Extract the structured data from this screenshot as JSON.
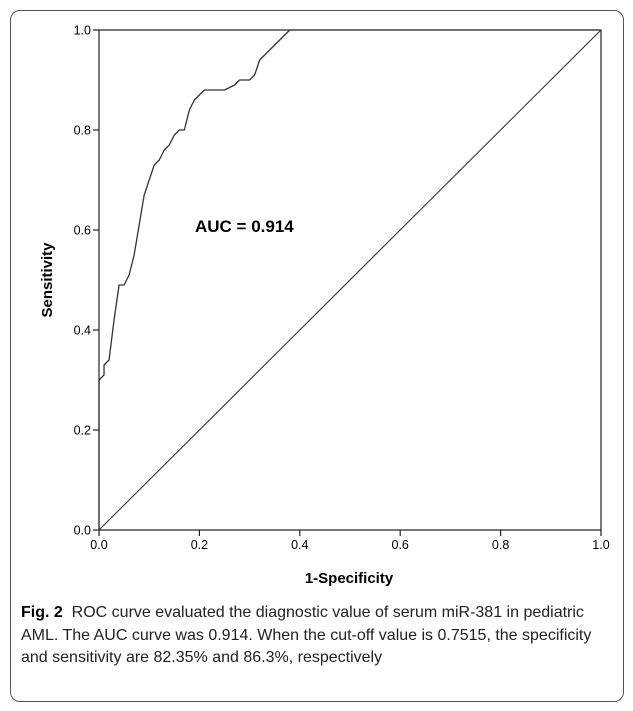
{
  "chart_data": {
    "type": "line",
    "title": "",
    "xlabel": "1-Specificity",
    "ylabel": "Sensitivity",
    "xlim": [
      0.0,
      1.0
    ],
    "ylim": [
      0.0,
      1.0
    ],
    "xticks": [
      "0.0",
      "0.2",
      "0.4",
      "0.6",
      "0.8",
      "1.0"
    ],
    "yticks": [
      "0.0",
      "0.2",
      "0.4",
      "0.6",
      "0.8",
      "1.0"
    ],
    "grid": false,
    "annotation": "AUC = 0.914",
    "series": [
      {
        "points": [
          [
            0.0,
            0.0
          ],
          [
            0.0,
            0.16
          ],
          [
            0.0,
            0.3
          ],
          [
            0.01,
            0.31
          ],
          [
            0.01,
            0.33
          ],
          [
            0.02,
            0.34
          ],
          [
            0.03,
            0.42
          ],
          [
            0.04,
            0.49
          ],
          [
            0.05,
            0.49
          ],
          [
            0.06,
            0.51
          ],
          [
            0.07,
            0.55
          ],
          [
            0.08,
            0.61
          ],
          [
            0.09,
            0.67
          ],
          [
            0.1,
            0.7
          ],
          [
            0.11,
            0.73
          ],
          [
            0.12,
            0.74
          ],
          [
            0.13,
            0.76
          ],
          [
            0.14,
            0.77
          ],
          [
            0.15,
            0.79
          ],
          [
            0.16,
            0.8
          ],
          [
            0.17,
            0.8
          ],
          [
            0.18,
            0.84
          ],
          [
            0.19,
            0.86
          ],
          [
            0.2,
            0.87
          ],
          [
            0.21,
            0.88
          ],
          [
            0.25,
            0.88
          ],
          [
            0.27,
            0.89
          ],
          [
            0.28,
            0.9
          ],
          [
            0.3,
            0.9
          ],
          [
            0.31,
            0.91
          ],
          [
            0.32,
            0.94
          ],
          [
            0.33,
            0.95
          ],
          [
            0.34,
            0.96
          ],
          [
            0.35,
            0.97
          ],
          [
            0.36,
            0.98
          ],
          [
            0.37,
            0.99
          ],
          [
            0.38,
            1.0
          ],
          [
            1.0,
            1.0
          ]
        ]
      },
      {
        "points": [
          [
            0.0,
            0.0
          ],
          [
            1.0,
            1.0
          ]
        ]
      }
    ]
  },
  "caption": {
    "fig_label": "Fig. 2",
    "text": "ROC curve evaluated the diagnostic value of serum miR-381 in pediatric AML. The AUC curve was 0.914. When the cut-off value is 0.7515, the specificity and sensitivity are 82.35% and 86.3%, respectively"
  }
}
